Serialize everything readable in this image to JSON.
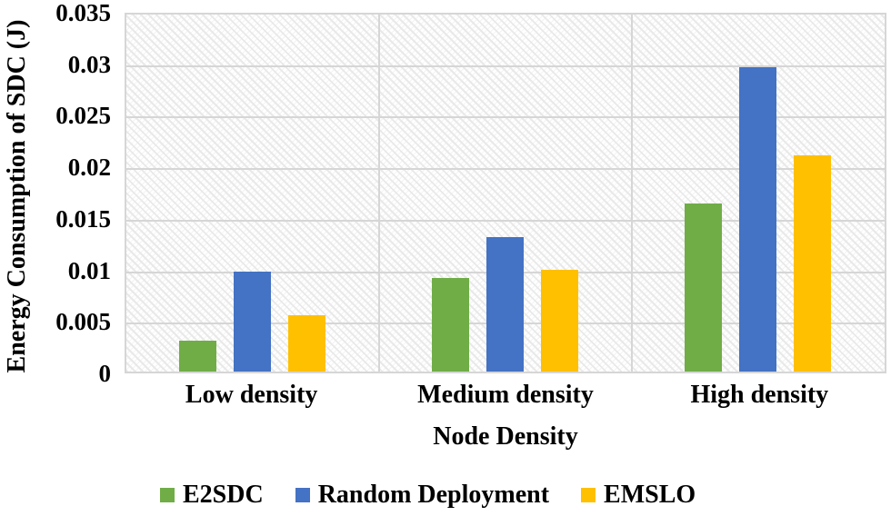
{
  "chart_data": {
    "type": "bar",
    "title": "",
    "xlabel": "Node Density",
    "ylabel": "Energy Consumption of SDC (J)",
    "categories": [
      "Low density",
      "Medium density",
      "High density"
    ],
    "series": [
      {
        "name": "E2SDC",
        "color": "#70AD47",
        "values": [
          0.003,
          0.0092,
          0.0165
        ]
      },
      {
        "name": "Random Deployment",
        "color": "#4472C4",
        "values": [
          0.0098,
          0.0132,
          0.0298
        ]
      },
      {
        "name": "EMSLO",
        "color": "#FFC000",
        "values": [
          0.0055,
          0.01,
          0.0212
        ]
      }
    ],
    "ylim": [
      0,
      0.035
    ],
    "ytick_step": 0.005,
    "ytick_labels": [
      "0.035",
      "0.03",
      "0.025",
      "0.02",
      "0.015",
      "0.01",
      "0.005",
      "0"
    ],
    "grid": "horizontal gridlines + vertical category separators",
    "plot_background": "light diagonal hatch pattern",
    "gridline_color": "#D6D6D6",
    "legend_position": "bottom",
    "legend_entries": [
      "E2SDC",
      "Random Deployment",
      "EMSLO"
    ]
  }
}
